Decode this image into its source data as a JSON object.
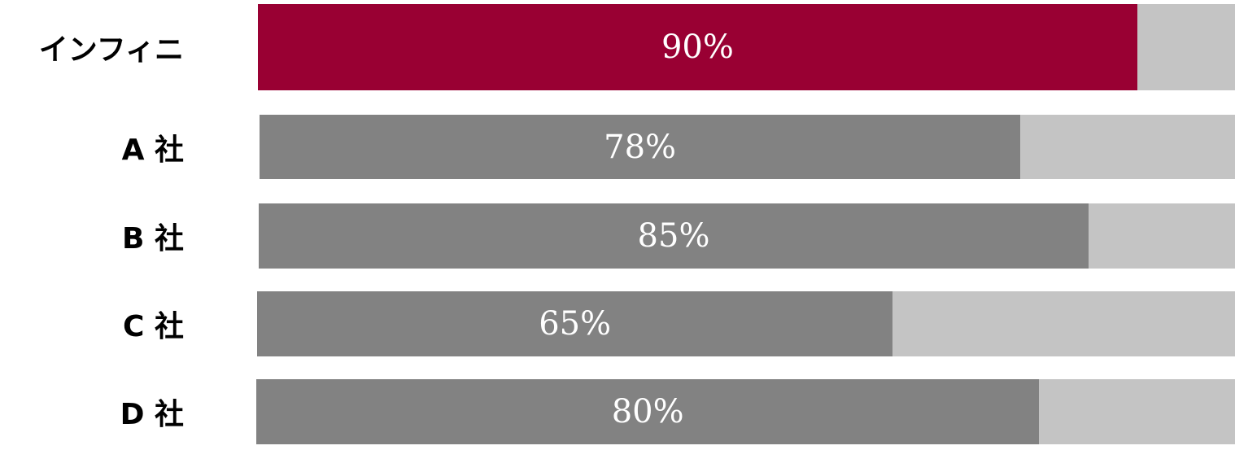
{
  "chart_data": {
    "type": "bar",
    "orientation": "horizontal",
    "categories": [
      "インフィニ",
      "A 社",
      "B 社",
      "C 社",
      "D 社"
    ],
    "values": [
      90,
      78,
      85,
      65,
      80
    ],
    "value_labels": [
      "90%",
      "78%",
      "85%",
      "65%",
      "80%"
    ],
    "xlim": [
      0,
      100
    ],
    "unit": "%",
    "grid": false,
    "colors": {
      "highlight": "#990033",
      "bar": "#828282",
      "track": "#c4c4c4"
    },
    "highlight_index": 0
  }
}
